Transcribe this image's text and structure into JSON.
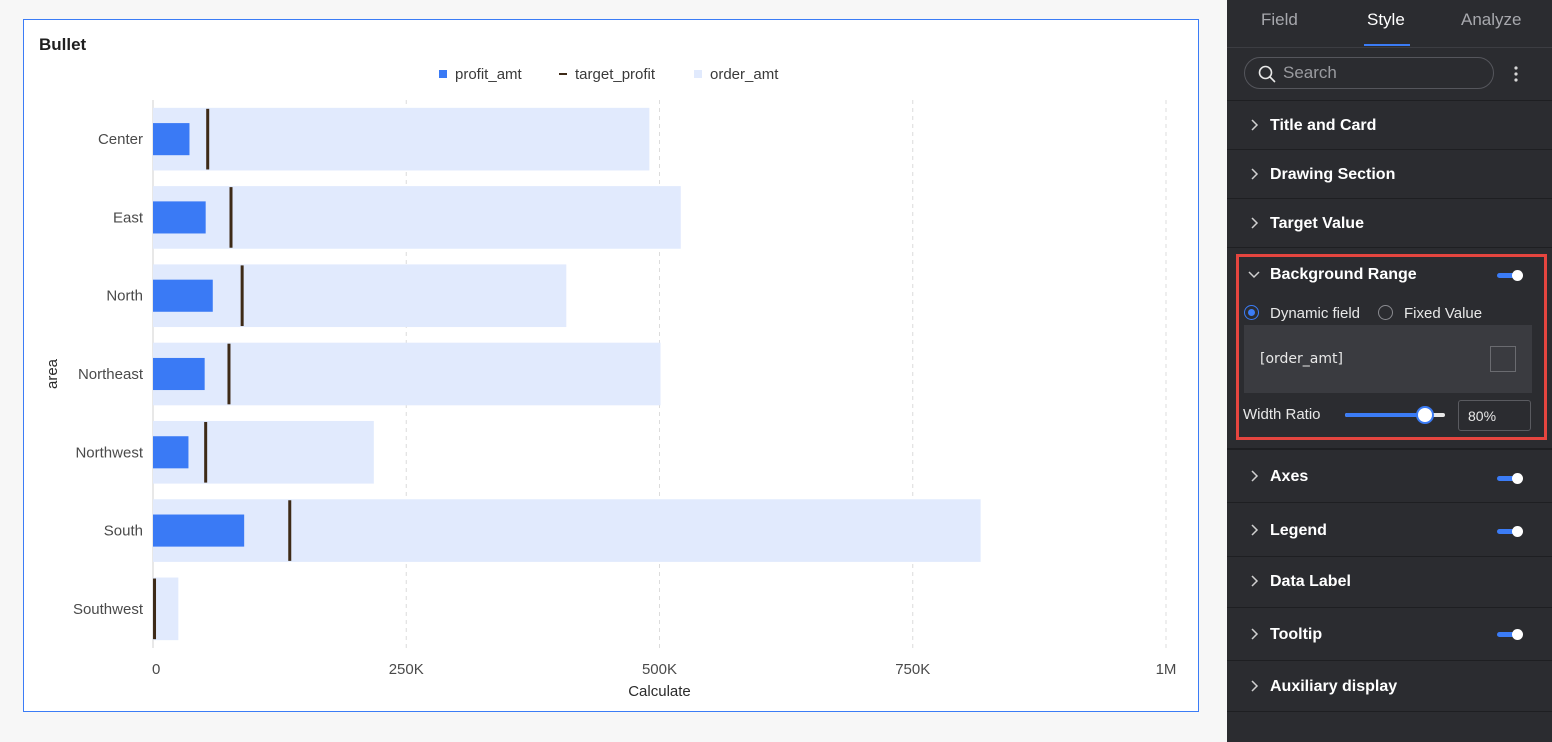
{
  "chart_card": {
    "title": "Bullet"
  },
  "chart_data": {
    "type": "bar",
    "orientation": "horizontal",
    "subtype": "bullet",
    "categories": [
      "Center",
      "East",
      "North",
      "Northeast",
      "Northwest",
      "South",
      "Southwest"
    ],
    "series": [
      {
        "name": "profit_amt",
        "role": "measure",
        "color": "#3a7af5",
        "values": [
          36000,
          52000,
          59000,
          51000,
          35000,
          90000,
          1500
        ]
      },
      {
        "name": "target_profit",
        "role": "target",
        "color": "#3d2a17",
        "values": [
          54000,
          77000,
          88000,
          75000,
          52000,
          135000,
          1500
        ]
      },
      {
        "name": "order_amt",
        "role": "range",
        "color": "#e1eafd",
        "values": [
          490000,
          521000,
          408000,
          501000,
          218000,
          817000,
          25000
        ]
      }
    ],
    "xlabel": "Calculate",
    "ylabel": "area",
    "xlim": [
      0,
      1000000
    ],
    "xticks": [
      0,
      250000,
      500000,
      750000,
      1000000
    ],
    "xtick_labels": [
      "0",
      "250K",
      "500K",
      "750K",
      "1M"
    ],
    "grid": "vertical-dashed",
    "legend": "top-center"
  },
  "panel": {
    "tabs": [
      "Field",
      "Style",
      "Analyze"
    ],
    "active_tab": "Style",
    "search_placeholder": "Search",
    "sections": [
      {
        "label": "Title and Card",
        "expanded": false,
        "toggle": false
      },
      {
        "label": "Drawing Section",
        "expanded": false,
        "toggle": false
      },
      {
        "label": "Target Value",
        "expanded": false,
        "toggle": false
      },
      {
        "label": "Background Range",
        "expanded": true,
        "toggle": true
      },
      {
        "label": "Axes",
        "expanded": false,
        "toggle": true
      },
      {
        "label": "Legend",
        "expanded": false,
        "toggle": true
      },
      {
        "label": "Data Label",
        "expanded": false,
        "toggle": false
      },
      {
        "label": "Tooltip",
        "expanded": false,
        "toggle": true
      },
      {
        "label": "Auxiliary display",
        "expanded": false,
        "toggle": false
      }
    ],
    "background_range": {
      "mode_options": [
        "Dynamic field",
        "Fixed Value"
      ],
      "selected_mode": "Dynamic field",
      "field": "[order_amt]",
      "width_ratio_label": "Width Ratio",
      "width_ratio_value": "80%",
      "width_ratio_fraction": 0.8
    }
  },
  "colors": {
    "accent": "#3b7cf6",
    "highlight_border": "#e5453f",
    "panel_bg": "#2b2c30"
  }
}
